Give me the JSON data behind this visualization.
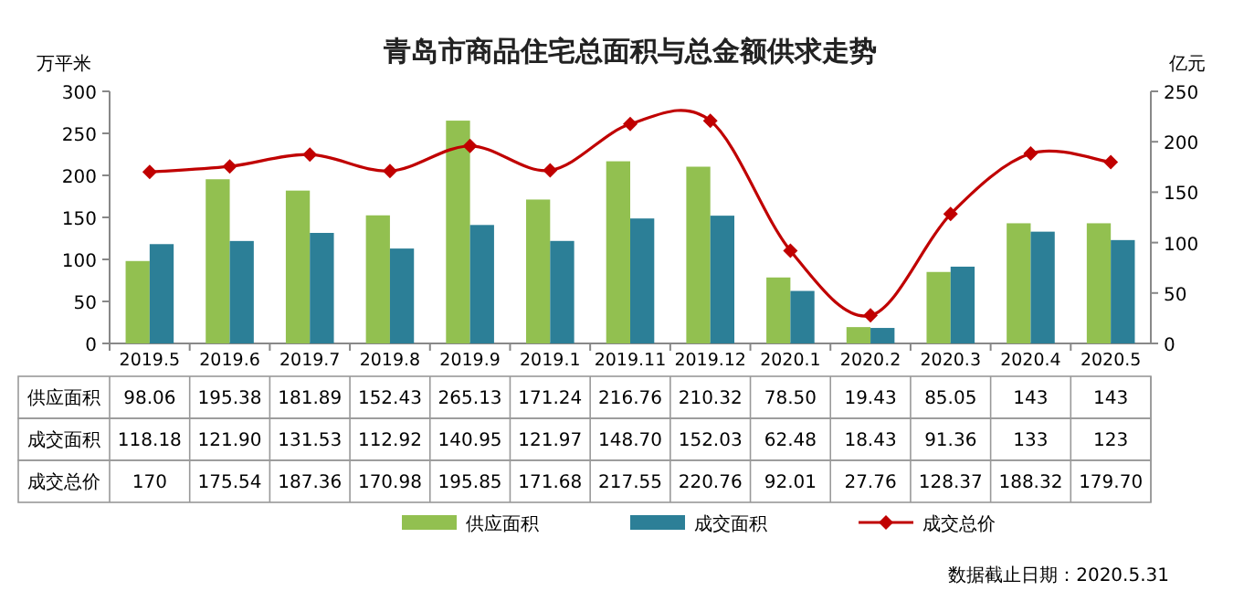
{
  "chart_data": {
    "type": "bar",
    "title": "青岛市商品住宅总面积与总金额供求走势",
    "ylabel": "万平米",
    "y2label": "亿元",
    "categories": [
      "2019.5",
      "2019.6",
      "2019.7",
      "2019.8",
      "2019.9",
      "2019.1",
      "2019.11",
      "2019.12",
      "2020.1",
      "2020.2",
      "2020.3",
      "2020.4",
      "2020.5"
    ],
    "series": [
      {
        "name": "供应面积",
        "color": "#92c050",
        "values": [
          98.06,
          195.38,
          181.89,
          152.43,
          265.13,
          171.24,
          216.76,
          210.32,
          78.5,
          19.43,
          85.05,
          143,
          143
        ],
        "value_labels": [
          "98.06",
          "195.38",
          "181.89",
          "152.43",
          "265.13",
          "171.24",
          "216.76",
          "210.32",
          "78.50",
          "19.43",
          "85.05",
          "143",
          "143"
        ]
      },
      {
        "name": "成交面积",
        "color": "#2c7f97",
        "values": [
          118.18,
          121.9,
          131.53,
          112.92,
          140.95,
          121.97,
          148.7,
          152.03,
          62.48,
          18.43,
          91.36,
          133,
          123
        ],
        "value_labels": [
          "118.18",
          "121.90",
          "131.53",
          "112.92",
          "140.95",
          "121.97",
          "148.70",
          "152.03",
          "62.48",
          "18.43",
          "91.36",
          "133",
          "123"
        ]
      },
      {
        "name": "成交总价",
        "type": "line",
        "axis": "y2",
        "color": "#c00000",
        "marker": "diamond",
        "values": [
          170,
          175.54,
          187.36,
          170.98,
          195.85,
          171.68,
          217.55,
          220.76,
          92.01,
          27.76,
          128.37,
          188.32,
          179.7
        ],
        "value_labels": [
          "170",
          "175.54",
          "187.36",
          "170.98",
          "195.85",
          "171.68",
          "217.55",
          "220.76",
          "92.01",
          "27.76",
          "128.37",
          "188.32",
          "179.70"
        ]
      }
    ],
    "ylim": [
      0,
      300
    ],
    "yticks": [
      0,
      50,
      100,
      150,
      200,
      250,
      300
    ],
    "y2lim": [
      0,
      250
    ],
    "y2ticks": [
      0,
      50,
      100,
      150,
      200,
      250
    ],
    "legend": "bottom",
    "annotations": [
      "数据截止日期：2020.5.31"
    ]
  }
}
